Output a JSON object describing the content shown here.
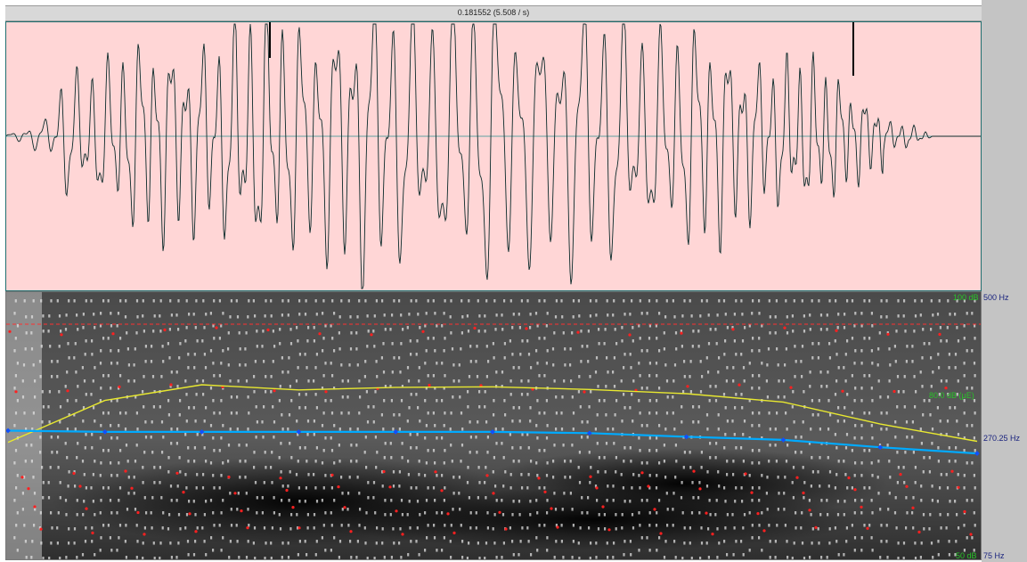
{
  "window": {
    "header_text": "0.181552 (5.508 / s)"
  },
  "axes": {
    "hz_top": "500 Hz",
    "hz_mid": "270.25 Hz",
    "hz_bottom": "75 Hz",
    "db_top": "100 dB",
    "db_mid": "80.0 dB (μE)",
    "db_bottom": "50 dB"
  },
  "colors": {
    "waveform_bg": "#ffd6d6",
    "waveform_line": "#0b2a2a",
    "pitch_line": "#00aaff",
    "intensity_line": "#e8e830",
    "formant_dots": "#ff2020",
    "hz_label": "#1a237e",
    "db_label": "#29c329"
  },
  "chart_data": {
    "type": "line",
    "title": "",
    "series": [
      {
        "x": [
          0.0,
          0.1,
          0.2,
          0.3,
          0.4,
          0.5,
          0.6,
          0.7,
          0.8,
          0.9,
          1.0
        ],
        "values": [
          281,
          279,
          279,
          279,
          279,
          279,
          277,
          271,
          266,
          254,
          244
        ]
      },
      {
        "x": [
          0.0,
          0.1,
          0.2,
          0.3,
          0.4,
          0.5,
          0.6,
          0.7,
          0.8,
          0.9,
          1.0
        ],
        "values": [
          72,
          80,
          83,
          82,
          82.5,
          82.6,
          82.1,
          81.3,
          79.7,
          75.5,
          72.2
        ]
      }
    ],
    "ylim_hz": [
      75,
      500
    ],
    "ylim_db": [
      50,
      100
    ]
  }
}
